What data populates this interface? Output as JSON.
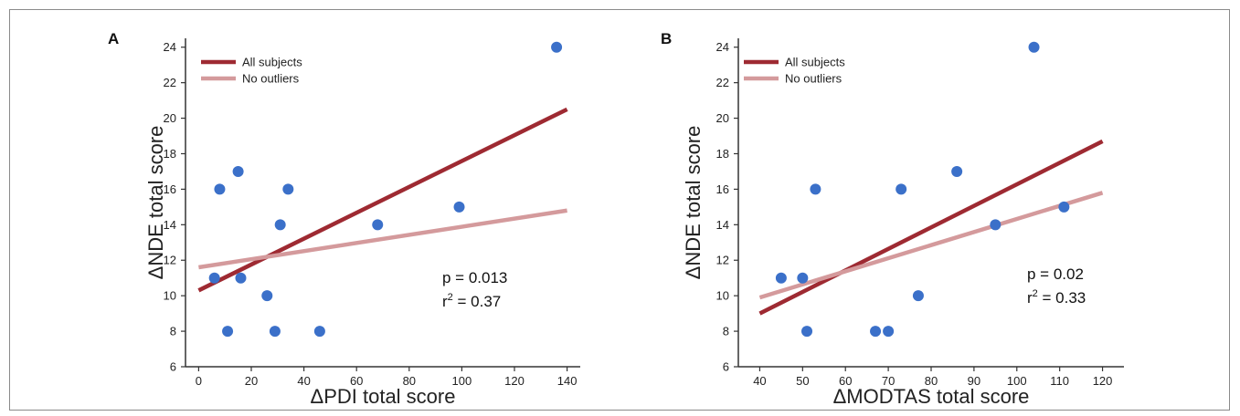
{
  "colors": {
    "all_subjects": "#9e2a32",
    "no_outliers": "#d49a9c",
    "points": "#3b70c9",
    "axis": "#333333"
  },
  "chart_data": [
    {
      "type": "scatter",
      "panel_label": "A",
      "xlabel": "ΔPDI total score",
      "ylabel": "ΔNDE total score",
      "xlim": [
        -5,
        145
      ],
      "ylim": [
        6,
        24.5
      ],
      "xticks": [
        0,
        20,
        40,
        60,
        80,
        100,
        120,
        140
      ],
      "yticks": [
        6,
        8,
        10,
        12,
        14,
        16,
        18,
        20,
        22,
        24
      ],
      "points": [
        {
          "x": 6,
          "y": 11
        },
        {
          "x": 8,
          "y": 16
        },
        {
          "x": 11,
          "y": 8
        },
        {
          "x": 15,
          "y": 17
        },
        {
          "x": 16,
          "y": 11
        },
        {
          "x": 26,
          "y": 10
        },
        {
          "x": 29,
          "y": 8
        },
        {
          "x": 31,
          "y": 14
        },
        {
          "x": 34,
          "y": 16
        },
        {
          "x": 46,
          "y": 8
        },
        {
          "x": 68,
          "y": 14
        },
        {
          "x": 99,
          "y": 15
        },
        {
          "x": 136,
          "y": 24
        }
      ],
      "lines": [
        {
          "name": "All subjects",
          "x": [
            0,
            140
          ],
          "y": [
            10.3,
            20.5
          ]
        },
        {
          "name": "No outliers",
          "x": [
            0,
            140
          ],
          "y": [
            11.6,
            14.8
          ]
        }
      ],
      "legend": [
        "All subjects",
        "No outliers"
      ],
      "legend_position": "top-left",
      "stats": {
        "p": "p  = 0.013",
        "r2_prefix": "r",
        "r2_sup": "2",
        "r2_value": " = 0.37"
      }
    },
    {
      "type": "scatter",
      "panel_label": "B",
      "xlabel": "ΔMODTAS total score",
      "ylabel": "ΔNDE total score",
      "xlim": [
        35,
        125
      ],
      "ylim": [
        6,
        24.5
      ],
      "xticks": [
        40,
        50,
        60,
        70,
        80,
        90,
        100,
        110,
        120
      ],
      "yticks": [
        6,
        8,
        10,
        12,
        14,
        16,
        18,
        20,
        22,
        24
      ],
      "points": [
        {
          "x": 45,
          "y": 11
        },
        {
          "x": 50,
          "y": 11
        },
        {
          "x": 51,
          "y": 8
        },
        {
          "x": 53,
          "y": 16
        },
        {
          "x": 67,
          "y": 8
        },
        {
          "x": 70,
          "y": 8
        },
        {
          "x": 73,
          "y": 16
        },
        {
          "x": 77,
          "y": 10
        },
        {
          "x": 86,
          "y": 17
        },
        {
          "x": 95,
          "y": 14
        },
        {
          "x": 104,
          "y": 24
        },
        {
          "x": 111,
          "y": 15
        }
      ],
      "lines": [
        {
          "name": "All subjects",
          "x": [
            40,
            120
          ],
          "y": [
            9.0,
            18.7
          ]
        },
        {
          "name": "No outliers",
          "x": [
            40,
            120
          ],
          "y": [
            9.9,
            15.8
          ]
        }
      ],
      "legend": [
        "All subjects",
        "No outliers"
      ],
      "legend_position": "top-left",
      "stats": {
        "p": "p  = 0.02",
        "r2_prefix": "r",
        "r2_sup": "2",
        "r2_value": " = 0.33"
      }
    }
  ]
}
